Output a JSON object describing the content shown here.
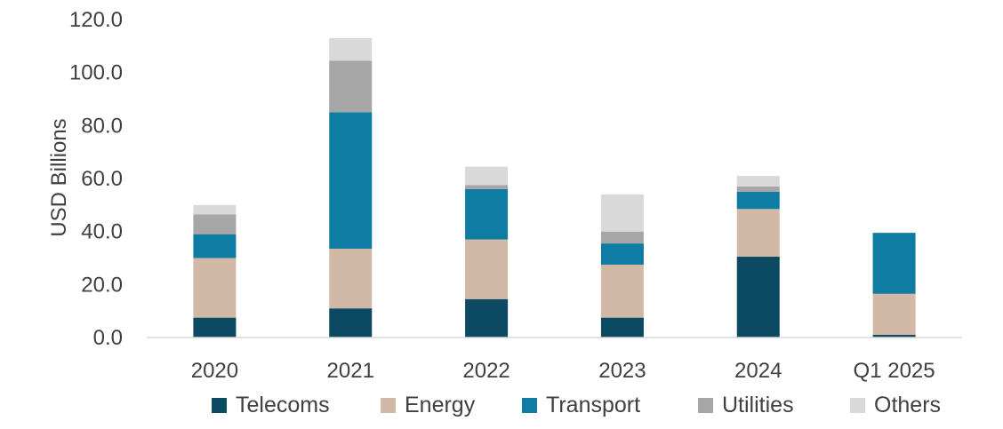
{
  "chart_data": {
    "type": "bar",
    "stacked": true,
    "ylabel": "USD Billions",
    "xlabel": "",
    "ylim": [
      0,
      120
    ],
    "yticks": [
      "0.0",
      "20.0",
      "40.0",
      "60.0",
      "80.0",
      "100.0",
      "120.0"
    ],
    "grid": false,
    "legend_position": "bottom",
    "categories": [
      "2020",
      "2021",
      "2022",
      "2023",
      "2024",
      "Q1 2025"
    ],
    "series": [
      {
        "name": "Telecoms",
        "color": "#0b4a60",
        "values": [
          7.5,
          11,
          14.5,
          7.5,
          30.5,
          1
        ]
      },
      {
        "name": "Energy",
        "color": "#d2b9a6",
        "values": [
          22.5,
          22.5,
          22.5,
          20,
          18,
          15.5
        ]
      },
      {
        "name": "Transport",
        "color": "#0f7ca4",
        "values": [
          9,
          51.5,
          19,
          8,
          6.5,
          23
        ]
      },
      {
        "name": "Utilities",
        "color": "#a6a6a6",
        "values": [
          7.5,
          19.5,
          1.5,
          4.5,
          2,
          0
        ]
      },
      {
        "name": "Others",
        "color": "#d9d9d9",
        "values": [
          3.5,
          8.5,
          7,
          14,
          4,
          0
        ]
      }
    ]
  }
}
